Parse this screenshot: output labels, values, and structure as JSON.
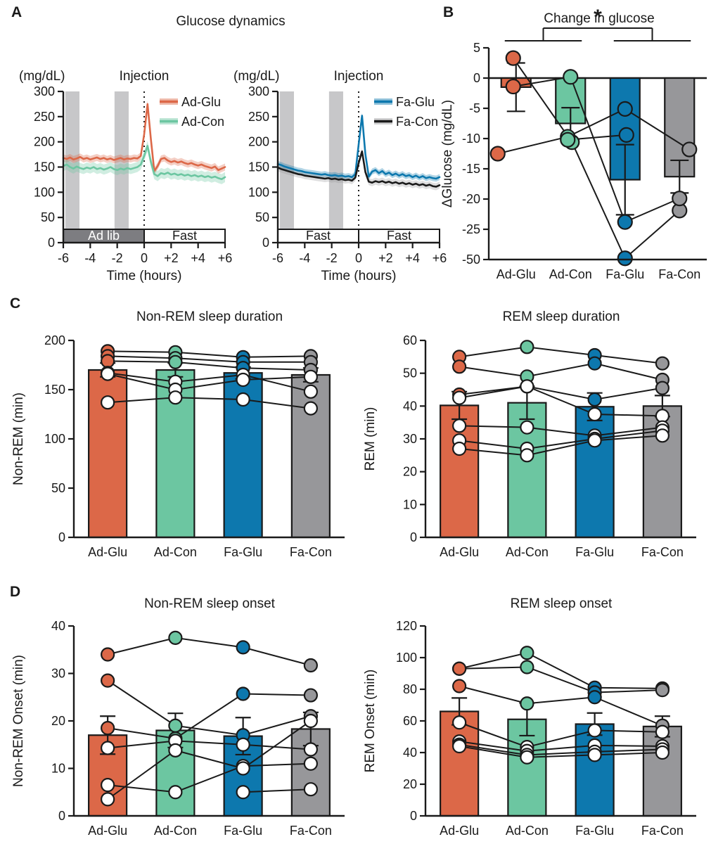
{
  "panels": {
    "a": {
      "label": "A",
      "title": "Glucose dynamics"
    },
    "b": {
      "label": "B"
    },
    "c": {
      "label": "C"
    },
    "d": {
      "label": "D"
    }
  },
  "colors": {
    "ad_glu": "#DC6848",
    "ad_con": "#6CC6A1",
    "fa_glu": "#0D78AE",
    "fa_con": "#97979A",
    "black": "#1A1A1A",
    "shade_band": "#C7C7C9",
    "adlib_box": "#7D7D81",
    "white": "#FFFFFF"
  },
  "group_color_keys": [
    "ad_glu",
    "ad_con",
    "fa_glu",
    "fa_con"
  ],
  "chart_data": [
    {
      "id": "a_left",
      "type": "line",
      "panel": "A",
      "y_unit": "(mg/dL)",
      "top_label": "Injection",
      "xlabel": "Time (hours)",
      "ylim": [
        0,
        300
      ],
      "yticks": [
        0,
        50,
        100,
        150,
        200,
        250,
        300
      ],
      "xlim": [
        -6,
        6
      ],
      "xticks": {
        "values": [
          -6,
          -4,
          -2,
          0,
          2,
          4,
          6
        ],
        "labels": [
          "-6",
          "-4",
          "-2",
          "0",
          "+2",
          "+4",
          "+6"
        ]
      },
      "shade_x": [
        [
          -5.85,
          -4.8
        ],
        [
          -2.2,
          -1.15
        ]
      ],
      "injection_x": 0,
      "x_start": -6,
      "x_step": 0.25,
      "phase_bands": [
        {
          "label": "Ad lib",
          "from": -6,
          "to": 0,
          "style": "dark"
        },
        {
          "label": "Fast",
          "from": 0,
          "to": 6,
          "style": "light"
        }
      ],
      "series": [
        {
          "name": "Ad-Glu",
          "color": "ad_glu",
          "sem": 7,
          "values": [
            168,
            166,
            169,
            165,
            167,
            170,
            166,
            168,
            165,
            167,
            169,
            166,
            168,
            165,
            167,
            164,
            166,
            168,
            165,
            167,
            166,
            168,
            167,
            172,
            215,
            275,
            205,
            142,
            152,
            166,
            168,
            163,
            160,
            162,
            159,
            161,
            158,
            156,
            158,
            155,
            153,
            155,
            152,
            150,
            148,
            151,
            144,
            147,
            150
          ]
        },
        {
          "name": "Ad-Con",
          "color": "ad_con",
          "sem": 10,
          "values": [
            152,
            155,
            150,
            147,
            151,
            148,
            146,
            149,
            147,
            150,
            146,
            148,
            145,
            147,
            150,
            146,
            144,
            147,
            145,
            148,
            146,
            148,
            150,
            155,
            172,
            192,
            160,
            136,
            132,
            138,
            136,
            139,
            135,
            137,
            134,
            136,
            133,
            135,
            132,
            134,
            131,
            133,
            130,
            132,
            129,
            131,
            128,
            126,
            130
          ]
        }
      ]
    },
    {
      "id": "a_right",
      "type": "line",
      "panel": "A",
      "y_unit": "(mg/dL)",
      "top_label": "Injection",
      "xlabel": "Time (hours)",
      "ylim": [
        0,
        300
      ],
      "yticks": [
        0,
        50,
        100,
        150,
        200,
        250,
        300
      ],
      "xlim": [
        -6,
        6
      ],
      "xticks": {
        "values": [
          -6,
          -4,
          -2,
          0,
          2,
          4,
          6
        ],
        "labels": [
          "-6",
          "-4",
          "-2",
          "0",
          "+2",
          "+4",
          "+6"
        ]
      },
      "shade_x": [
        [
          -5.85,
          -4.8
        ],
        [
          -2.2,
          -1.15
        ]
      ],
      "injection_x": 0,
      "x_start": -6,
      "x_step": 0.25,
      "phase_bands": [
        {
          "label": "Fast",
          "from": -6,
          "to": 0,
          "style": "light"
        },
        {
          "label": "Fast",
          "from": 0,
          "to": 6,
          "style": "light"
        }
      ],
      "series": [
        {
          "name": "Fa-Glu",
          "color": "fa_glu",
          "sem": 6,
          "values": [
            156,
            154,
            151,
            149,
            147,
            145,
            143,
            142,
            140,
            139,
            138,
            137,
            136,
            135,
            136,
            134,
            133,
            134,
            132,
            133,
            131,
            132,
            130,
            136,
            195,
            252,
            175,
            131,
            141,
            144,
            138,
            142,
            136,
            139,
            134,
            137,
            133,
            136,
            132,
            134,
            130,
            133,
            129,
            132,
            128,
            130,
            128,
            127,
            130
          ]
        },
        {
          "name": "Fa-Con",
          "color": "black",
          "band_color": "fa_con",
          "sem": 7,
          "values": [
            149,
            146,
            144,
            142,
            140,
            138,
            136,
            135,
            133,
            132,
            131,
            130,
            129,
            128,
            127,
            128,
            126,
            127,
            125,
            126,
            124,
            125,
            123,
            129,
            158,
            181,
            140,
            121,
            119,
            122,
            120,
            122,
            119,
            121,
            118,
            120,
            117,
            119,
            116,
            118,
            115,
            117,
            114,
            116,
            113,
            115,
            112,
            111,
            114
          ]
        }
      ]
    },
    {
      "id": "b",
      "type": "bar",
      "panel": "B",
      "title": "Change in glucose",
      "ylabel": "ΔGlucose (mg/dL)",
      "categories": [
        "Ad-Glu",
        "Ad-Con",
        "Fa-Glu",
        "Fa-Con"
      ],
      "bar_values": [
        -1.5,
        -7.5,
        -16.8,
        -16.3
      ],
      "sem": [
        4,
        2.6,
        5.8,
        2.7
      ],
      "yticks": [
        5,
        0,
        -5,
        -10,
        -15,
        -20,
        -25,
        -50
      ],
      "broken_axis": true,
      "significance": {
        "label": "*",
        "compares": [
          [
            "Ad-Glu",
            "Ad-Con"
          ],
          [
            "Fa-Glu",
            "Fa-Con"
          ]
        ]
      },
      "subjects": [
        {
          "marker": "filled",
          "values": [
            3.3,
            -10.6,
            -49,
            -21.9
          ],
          "dx": [
            -4,
            2,
            0,
            0
          ]
        },
        {
          "marker": "filled",
          "values": [
            -1.4,
            0.2,
            -23.8,
            -19.9
          ],
          "dx": [
            -4,
            0,
            0,
            0
          ]
        },
        {
          "marker": "filled",
          "values": [
            -12.5,
            -9.7,
            -5.1,
            -11.8
          ],
          "dx": [
            -26,
            -4,
            0,
            14
          ]
        },
        {
          "marker": "filled",
          "values": [
            null,
            -10.2,
            -9.4,
            null
          ],
          "dx": [
            0,
            -4,
            2,
            0
          ]
        }
      ]
    },
    {
      "id": "c_left",
      "type": "bar",
      "panel": "C",
      "title": "Non-REM sleep duration",
      "ylabel": "Non-REM (min)",
      "categories": [
        "Ad-Glu",
        "Ad-Con",
        "Fa-Glu",
        "Fa-Con"
      ],
      "bar_values": [
        170,
        170,
        167,
        165
      ],
      "sem": [
        7,
        7,
        6,
        7
      ],
      "ylim": [
        0,
        200
      ],
      "yticks": [
        0,
        50,
        100,
        150,
        200
      ],
      "subjects": [
        {
          "marker": "filled",
          "values": [
            189,
            188,
            183,
            184
          ]
        },
        {
          "marker": "filled",
          "values": [
            184,
            182,
            178,
            178
          ]
        },
        {
          "marker": "filled",
          "values": [
            179,
            178,
            172,
            170
          ]
        },
        {
          "marker": "open",
          "values": [
            167,
            158,
            165,
            148
          ]
        },
        {
          "marker": "open",
          "values": [
            166,
            150,
            160,
            163
          ]
        },
        {
          "marker": "open",
          "values": [
            137,
            142,
            140,
            131
          ]
        }
      ]
    },
    {
      "id": "c_right",
      "type": "bar",
      "panel": "C",
      "title": "REM sleep duration",
      "ylabel": "REM (min)",
      "categories": [
        "Ad-Glu",
        "Ad-Con",
        "Fa-Glu",
        "Fa-Con"
      ],
      "bar_values": [
        40.2,
        41,
        39.8,
        40
      ],
      "sem": [
        4.2,
        5,
        4.2,
        3.2
      ],
      "ylim": [
        0,
        60
      ],
      "yticks": [
        0,
        10,
        20,
        30,
        40,
        50,
        60
      ],
      "subjects": [
        {
          "marker": "filled",
          "values": [
            55,
            58,
            55.5,
            53
          ]
        },
        {
          "marker": "filled",
          "values": [
            52,
            49,
            53,
            48
          ]
        },
        {
          "marker": "filled",
          "values": [
            43.5,
            46,
            42,
            45.5
          ]
        },
        {
          "marker": "open",
          "values": [
            42.5,
            46,
            37.5,
            37
          ]
        },
        {
          "marker": "open",
          "values": [
            34,
            33.5,
            31,
            33.5
          ]
        },
        {
          "marker": "open",
          "values": [
            29.5,
            27,
            30,
            32.5
          ]
        },
        {
          "marker": "open",
          "values": [
            27,
            25,
            29.5,
            31
          ]
        }
      ]
    },
    {
      "id": "d_left",
      "type": "bar",
      "panel": "D",
      "title": "Non-REM sleep onset",
      "ylabel": "Non-REM Onset (min)",
      "categories": [
        "Ad-Glu",
        "Ad-Con",
        "Fa-Glu",
        "Fa-Con"
      ],
      "bar_values": [
        17,
        18,
        16.8,
        18.3
      ],
      "sem": [
        4,
        3.6,
        3.9,
        3.5
      ],
      "ylim": [
        0,
        40
      ],
      "yticks": [
        0,
        10,
        20,
        30,
        40
      ],
      "subjects": [
        {
          "marker": "filled",
          "values": [
            34,
            37.5,
            35.5,
            31.7
          ]
        },
        {
          "marker": "filled",
          "values": [
            28.5,
            19,
            17,
            21
          ]
        },
        {
          "marker": "filled",
          "values": [
            18.5,
            16.3,
            25.7,
            25.4
          ]
        },
        {
          "marker": "open",
          "values": [
            14.3,
            15.8,
            15,
            14
          ]
        },
        {
          "marker": "open",
          "values": [
            6.5,
            5,
            10.5,
            11
          ]
        },
        {
          "marker": "open",
          "values": [
            3.5,
            13.8,
            10,
            20
          ]
        },
        {
          "marker": "open",
          "values": [
            null,
            null,
            5,
            5.6
          ]
        }
      ]
    },
    {
      "id": "d_right",
      "type": "bar",
      "panel": "D",
      "title": "REM sleep onset",
      "ylabel": "REM Onset (min)",
      "categories": [
        "Ad-Glu",
        "Ad-Con",
        "Fa-Glu",
        "Fa-Con"
      ],
      "bar_values": [
        66,
        61,
        58,
        56.5
      ],
      "sem": [
        8.5,
        10.3,
        7,
        6.5
      ],
      "ylim": [
        0,
        120
      ],
      "yticks": [
        0,
        20,
        40,
        60,
        80,
        100,
        120
      ],
      "subjects": [
        {
          "marker": "filled",
          "values": [
            93,
            103,
            81,
            80.5
          ]
        },
        {
          "marker": "filled",
          "values": [
            93,
            94,
            78,
            79.5
          ]
        },
        {
          "marker": "filled",
          "values": [
            82,
            71,
            75,
            57
          ]
        },
        {
          "marker": "open",
          "values": [
            59,
            43.5,
            54,
            53
          ]
        },
        {
          "marker": "open",
          "values": [
            47,
            41,
            44.5,
            44
          ]
        },
        {
          "marker": "open",
          "values": [
            45,
            38.5,
            40.5,
            42
          ]
        },
        {
          "marker": "open",
          "values": [
            44,
            37,
            38.5,
            40
          ]
        }
      ]
    }
  ]
}
